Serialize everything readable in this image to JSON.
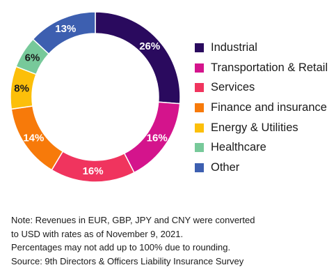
{
  "chart_data": {
    "type": "pie",
    "donut": true,
    "title": "",
    "slices": [
      {
        "label": "Industrial",
        "value": 26,
        "value_label": "26%",
        "color": "#2a0a5e"
      },
      {
        "label": "Transportation & Retail",
        "value": 16,
        "value_label": "16%",
        "color": "#d4148c"
      },
      {
        "label": "Services",
        "value": 16,
        "value_label": "16%",
        "color": "#f0345e"
      },
      {
        "label": "Finance and insurance",
        "value": 14,
        "value_label": "14%",
        "color": "#f77a0a"
      },
      {
        "label": "Energy & Utilities",
        "value": 8,
        "value_label": "8%",
        "color": "#fcbf0a"
      },
      {
        "label": "Healthcare",
        "value": 6,
        "value_label": "6%",
        "color": "#77c99a"
      },
      {
        "label": "Other",
        "value": 13,
        "value_label": "13%",
        "color": "#3d5fb0"
      }
    ],
    "legend_position": "right"
  },
  "notes": [
    "Note: Revenues in EUR, GBP, JPY and CNY were converted",
    "to USD with rates as of November 9, 2021.",
    "Percentages may not add up to 100% due to rounding.",
    "Source: 9th Directors & Officers Liability Insurance Survey"
  ]
}
